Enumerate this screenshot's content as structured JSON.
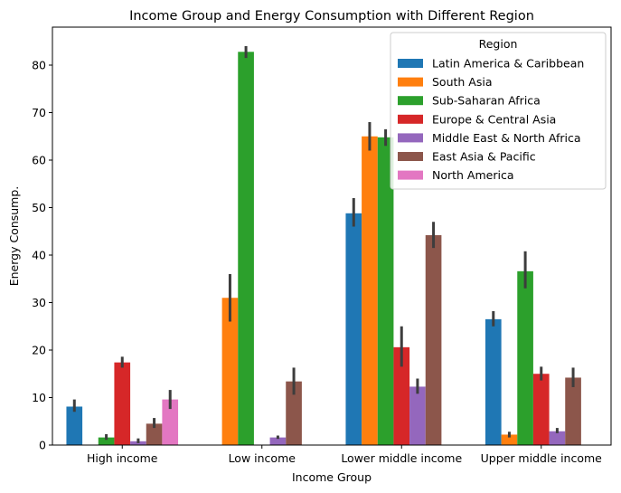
{
  "chart_data": {
    "type": "bar",
    "title": "Income Group and Energy Consumption with Different Region",
    "xlabel": "Income Group",
    "ylabel": "Energy Consump.",
    "ylim": [
      0,
      88
    ],
    "yticks": [
      0,
      10,
      20,
      30,
      40,
      50,
      60,
      70,
      80
    ],
    "categories": [
      "High income",
      "Low income",
      "Lower middle income",
      "Upper middle income"
    ],
    "legend": {
      "title": "Region",
      "position": "top-right"
    },
    "series": [
      {
        "name": "Latin America & Caribbean",
        "color": "#1f77b4",
        "values": [
          8.1,
          null,
          48.8,
          26.5
        ],
        "err_low": [
          7.0,
          null,
          46.0,
          25.0
        ],
        "err_high": [
          9.6,
          null,
          52.0,
          28.2
        ]
      },
      {
        "name": "South Asia",
        "color": "#ff7f0e",
        "values": [
          null,
          31.0,
          65.0,
          2.2
        ],
        "err_low": [
          null,
          26.0,
          62.0,
          1.6
        ],
        "err_high": [
          null,
          36.0,
          68.0,
          2.8
        ]
      },
      {
        "name": "Sub-Saharan Africa",
        "color": "#2ca02c",
        "values": [
          1.6,
          82.8,
          64.8,
          36.6
        ],
        "err_low": [
          1.1,
          81.5,
          63.0,
          33.0
        ],
        "err_high": [
          2.3,
          84.0,
          66.5,
          40.8
        ]
      },
      {
        "name": "Europe & Central Asia",
        "color": "#d62728",
        "values": [
          17.4,
          null,
          20.6,
          15.0
        ],
        "err_low": [
          16.3,
          null,
          16.5,
          13.6
        ],
        "err_high": [
          18.6,
          null,
          25.0,
          16.5
        ]
      },
      {
        "name": "Middle East & North Africa",
        "color": "#9467bd",
        "values": [
          0.8,
          1.6,
          12.3,
          2.9
        ],
        "err_low": [
          0.4,
          1.3,
          10.8,
          2.5
        ],
        "err_high": [
          1.4,
          2.0,
          14.0,
          3.6
        ]
      },
      {
        "name": "East Asia & Pacific",
        "color": "#8c564b",
        "values": [
          4.5,
          13.4,
          44.2,
          14.2
        ],
        "err_low": [
          3.6,
          10.6,
          41.5,
          12.2
        ],
        "err_high": [
          5.7,
          16.3,
          47.0,
          16.3
        ]
      },
      {
        "name": "North America",
        "color": "#e377c2",
        "values": [
          9.6,
          null,
          null,
          null
        ],
        "err_low": [
          7.6,
          null,
          null,
          null
        ],
        "err_high": [
          11.6,
          null,
          null,
          null
        ]
      }
    ]
  }
}
